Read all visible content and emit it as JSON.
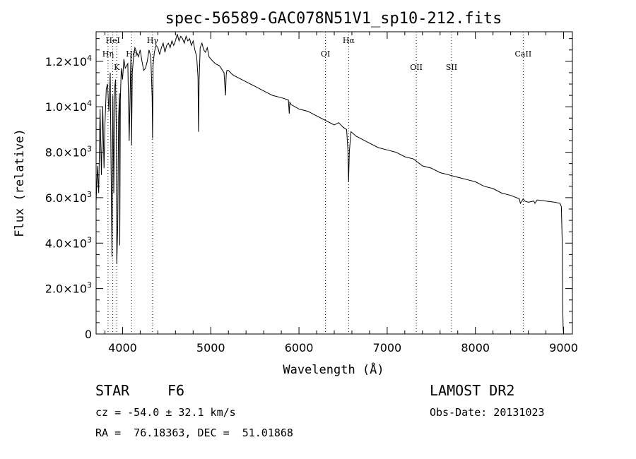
{
  "chart_data": {
    "type": "line",
    "title": "spec-56589-GAC078N51V1_sp10-212.fits",
    "xlabel": "Wavelength (Å)",
    "ylabel": "Flux (relative)",
    "xlim": [
      3700,
      9100
    ],
    "ylim": [
      0,
      13300
    ],
    "grid": false,
    "x_ticks": [
      4000,
      5000,
      6000,
      7000,
      8000,
      9000
    ],
    "x_tick_labels": [
      "4000",
      "5000",
      "6000",
      "7000",
      "8000",
      "9000"
    ],
    "y_ticks": [
      0,
      2000,
      4000,
      6000,
      8000,
      10000,
      12000
    ],
    "y_tick_labels": [
      {
        "mantissa": "0",
        "exp": ""
      },
      {
        "mantissa": "2.0×10",
        "exp": "3"
      },
      {
        "mantissa": "4.0×10",
        "exp": "3"
      },
      {
        "mantissa": "6.0×10",
        "exp": "3"
      },
      {
        "mantissa": "8.0×10",
        "exp": "3"
      },
      {
        "mantissa": "1.0×10",
        "exp": "4"
      },
      {
        "mantissa": "1.2×10",
        "exp": "4"
      }
    ],
    "spectral_lines": [
      {
        "label": "HeI",
        "wavelength": 3889
      },
      {
        "label": "Hη",
        "wavelength": 3835
      },
      {
        "label": "K",
        "wavelength": 3934
      },
      {
        "label": "Hδ",
        "wavelength": 4102
      },
      {
        "label": "Hγ",
        "wavelength": 4340
      },
      {
        "label": "OI",
        "wavelength": 6300
      },
      {
        "label": "Hα",
        "wavelength": 6563
      },
      {
        "label": "OII",
        "wavelength": 7330
      },
      {
        "label": "SII",
        "wavelength": 7730
      },
      {
        "label": "CaII",
        "wavelength": 8542
      }
    ],
    "series": [
      {
        "x": [
          3700,
          3715,
          3730,
          3745,
          3760,
          3775,
          3790,
          3800,
          3815,
          3830,
          3845,
          3860,
          3870,
          3880,
          3890,
          3900,
          3910,
          3920,
          3930,
          3935,
          3945,
          3955,
          3965,
          3968,
          3975,
          3985,
          4000,
          4015,
          4030,
          4045,
          4060,
          4075,
          4095,
          4102,
          4110,
          4125,
          4140,
          4160,
          4180,
          4200,
          4220,
          4240,
          4260,
          4280,
          4300,
          4320,
          4335,
          4340,
          4346,
          4360,
          4380,
          4400,
          4420,
          4440,
          4460,
          4480,
          4500,
          4520,
          4540,
          4560,
          4580,
          4600,
          4620,
          4640,
          4660,
          4680,
          4700,
          4720,
          4740,
          4760,
          4780,
          4800,
          4820,
          4840,
          4855,
          4861,
          4868,
          4880,
          4900,
          4920,
          4940,
          4960,
          4980,
          5000,
          5050,
          5100,
          5150,
          5167,
          5175,
          5183,
          5200,
          5250,
          5300,
          5350,
          5400,
          5450,
          5500,
          5600,
          5700,
          5800,
          5880,
          5890,
          5896,
          5910,
          6000,
          6100,
          6200,
          6300,
          6400,
          6450,
          6500,
          6540,
          6555,
          6563,
          6571,
          6590,
          6650,
          6700,
          6800,
          6900,
          7000,
          7100,
          7200,
          7300,
          7400,
          7500,
          7600,
          7700,
          7800,
          7900,
          8000,
          8100,
          8200,
          8300,
          8400,
          8498,
          8510,
          8542,
          8560,
          8600,
          8662,
          8675,
          8700,
          8800,
          8900,
          8960,
          8975,
          8985,
          8990,
          8995,
          9000
        ],
        "y": [
          5800,
          7400,
          6200,
          9900,
          7000,
          10000,
          7300,
          9200,
          10800,
          11000,
          9800,
          11500,
          7300,
          3400,
          10500,
          6200,
          10800,
          11200,
          8800,
          3100,
          4800,
          9500,
          10600,
          3900,
          10300,
          11700,
          11200,
          12100,
          11700,
          11800,
          11900,
          8500,
          12300,
          8300,
          11500,
          12200,
          12600,
          12400,
          12200,
          12500,
          12000,
          11600,
          11700,
          12000,
          12500,
          12200,
          10400,
          8600,
          11800,
          12400,
          12700,
          12600,
          12300,
          12600,
          12800,
          12400,
          12700,
          12800,
          12600,
          12900,
          12700,
          12900,
          13200,
          12900,
          13100,
          13000,
          12800,
          13100,
          12900,
          13000,
          12700,
          12900,
          12500,
          12200,
          11300,
          8900,
          11200,
          12600,
          12800,
          12500,
          12400,
          12600,
          12200,
          12100,
          11900,
          11800,
          11500,
          10500,
          11400,
          11600,
          11600,
          11400,
          11300,
          11200,
          11100,
          11000,
          10900,
          10700,
          10500,
          10400,
          10300,
          9700,
          10200,
          10100,
          9900,
          9800,
          9600,
          9400,
          9200,
          9300,
          9100,
          9000,
          8100,
          6700,
          8000,
          8900,
          8700,
          8600,
          8400,
          8200,
          8100,
          8000,
          7800,
          7700,
          7400,
          7300,
          7100,
          7000,
          6900,
          6800,
          6700,
          6500,
          6400,
          6200,
          6100,
          5950,
          5750,
          5950,
          5850,
          5800,
          5850,
          5750,
          5900,
          5850,
          5800,
          5750,
          5600,
          4000,
          1200,
          300,
          0
        ]
      }
    ]
  },
  "info": {
    "object_type": "STAR",
    "subclass": "F6",
    "survey": "LAMOST DR2",
    "cz": "cz = -54.0 ± 32.1 km/s",
    "obs_date": "Obs-Date: 20131023",
    "coords": "RA =  76.18363, DEC =  51.01868"
  }
}
